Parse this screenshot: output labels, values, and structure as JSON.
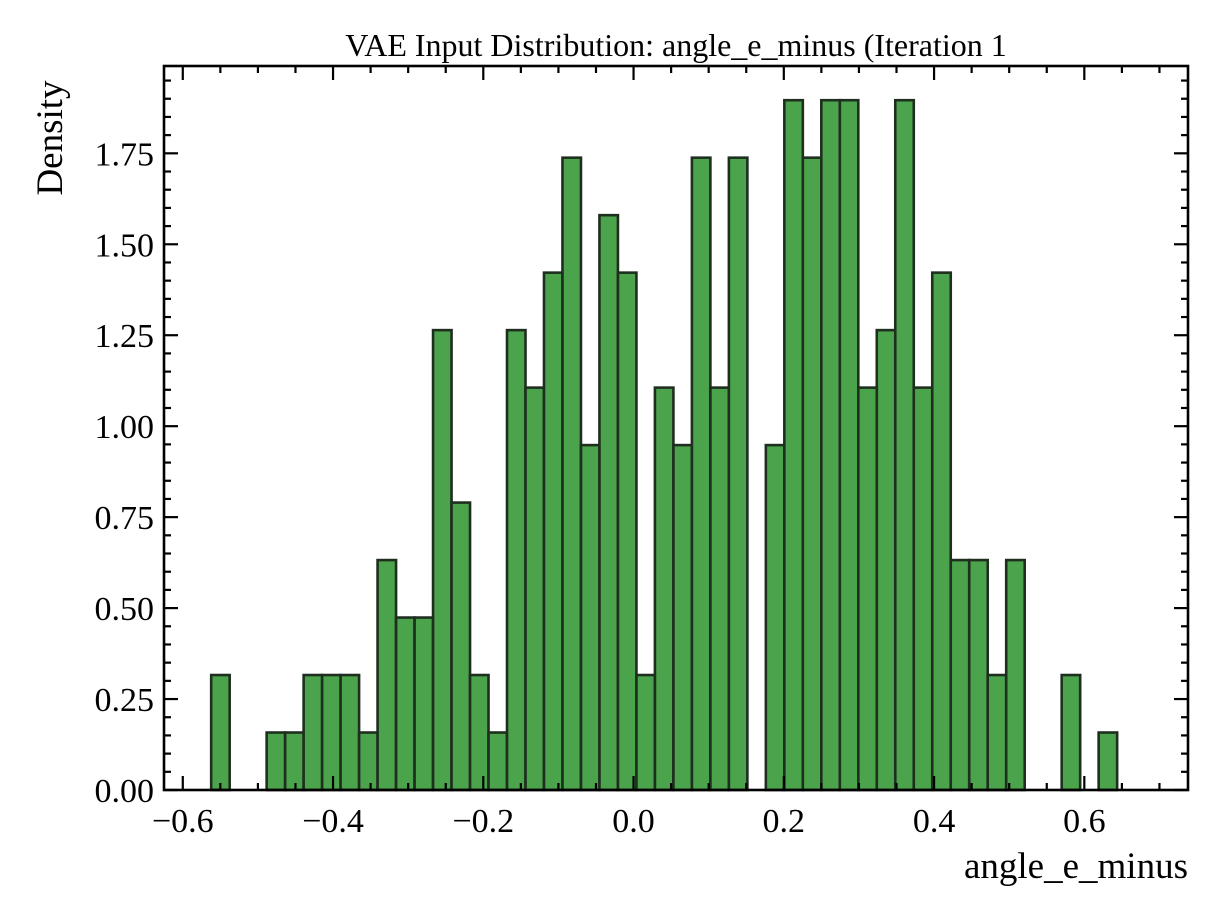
{
  "chart_data": {
    "type": "bar",
    "title": "VAE Input Distribution: angle_e_minus (Iteration 1",
    "xlabel": "angle_e_minus",
    "ylabel": "Density",
    "xlim": [
      -0.625,
      0.738
    ],
    "ylim": [
      0,
      1.99
    ],
    "xticks": [
      -0.6,
      -0.4,
      -0.2,
      0.0,
      0.2,
      0.4,
      0.6
    ],
    "xtick_labels": [
      "−0.6",
      "−0.4",
      "−0.2",
      "0.0",
      "0.2",
      "0.4",
      "0.6"
    ],
    "yticks": [
      0.0,
      0.25,
      0.5,
      0.75,
      1.0,
      1.25,
      1.5,
      1.75
    ],
    "ytick_labels": [
      "0.00",
      "0.25",
      "0.50",
      "0.75",
      "1.00",
      "1.25",
      "1.50",
      "1.75"
    ],
    "bin_start": -0.5622,
    "bin_width": 0.02461,
    "values": [
      0.316,
      0,
      0,
      0.158,
      0.158,
      0.316,
      0.316,
      0.316,
      0.158,
      0.632,
      0.474,
      0.474,
      1.264,
      0.79,
      0.316,
      0.158,
      1.264,
      1.106,
      1.422,
      1.738,
      0.948,
      1.58,
      1.422,
      0.316,
      1.106,
      0.948,
      1.738,
      1.106,
      1.738,
      0,
      0.948,
      1.896,
      1.738,
      1.896,
      1.896,
      1.106,
      1.264,
      1.896,
      1.106,
      1.422,
      0.632,
      0.632,
      0.316,
      0.632,
      0,
      0,
      0.316,
      0,
      0.158
    ],
    "bar_color": "#3c9c3c",
    "edge_color": "#1f2f1f",
    "grid": false,
    "legend": "none"
  }
}
